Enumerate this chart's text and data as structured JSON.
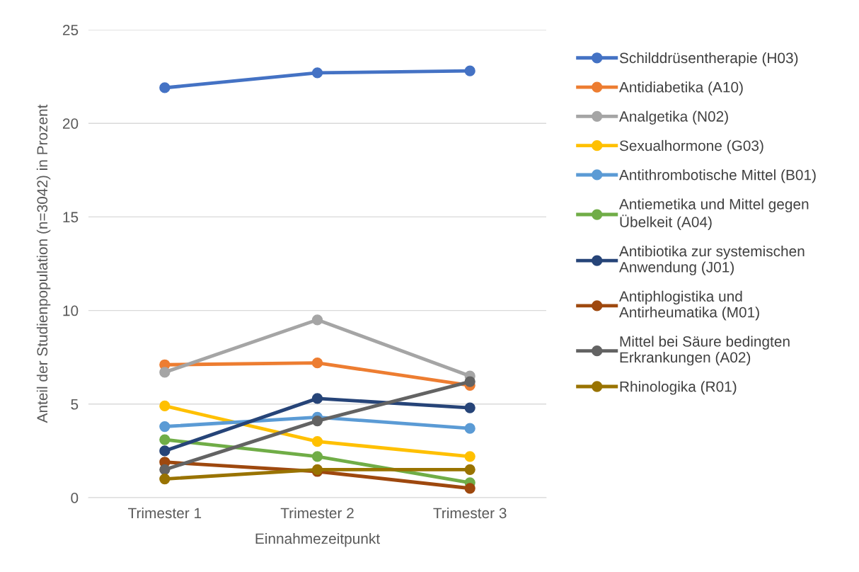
{
  "chart_data": {
    "type": "line",
    "xlabel": "Einnahmezeitpunkt",
    "ylabel": "Anteil der Studienpopulation (n=3042) in Prozent",
    "categories": [
      "Trimester 1",
      "Trimester 2",
      "Trimester 3"
    ],
    "ylim": [
      0,
      25
    ],
    "yticks": [
      0,
      5,
      10,
      15,
      20,
      25
    ],
    "grid": "y",
    "legend": "right",
    "marker": "circle",
    "line_style": "solid",
    "series": [
      {
        "name": "Schilddrüsentherapie (H03)",
        "color": "#4472c4",
        "values": [
          21.9,
          22.7,
          22.8
        ]
      },
      {
        "name": "Antidiabetika (A10)",
        "color": "#ed7d31",
        "values": [
          7.1,
          7.2,
          6.0
        ]
      },
      {
        "name": "Analgetika (N02)",
        "color": "#a5a5a5",
        "values": [
          6.7,
          9.5,
          6.5
        ]
      },
      {
        "name": "Sexualhormone (G03)",
        "color": "#ffc000",
        "values": [
          4.9,
          3.0,
          2.2
        ]
      },
      {
        "name": "Antithrombotische Mittel (B01)",
        "color": "#5b9bd5",
        "values": [
          3.8,
          4.3,
          3.7
        ]
      },
      {
        "name": "Antiemetika und Mittel gegen\nÜbelkeit (A04)",
        "color": "#70ad47",
        "values": [
          3.1,
          2.2,
          0.8
        ]
      },
      {
        "name": "Antibiotika zur systemischen\nAnwendung (J01)",
        "color": "#264478",
        "values": [
          2.5,
          5.3,
          4.8
        ]
      },
      {
        "name": "Antiphlogistika und\nAntirheumatika (M01)",
        "color": "#9e480e",
        "values": [
          1.9,
          1.4,
          0.5
        ]
      },
      {
        "name": "Mittel bei Säure bedingten\nErkrankungen (A02)",
        "color": "#636363",
        "values": [
          1.5,
          4.1,
          6.2
        ]
      },
      {
        "name": "Rhinologika (R01)",
        "color": "#997300",
        "values": [
          1.0,
          1.5,
          1.5
        ]
      }
    ]
  }
}
